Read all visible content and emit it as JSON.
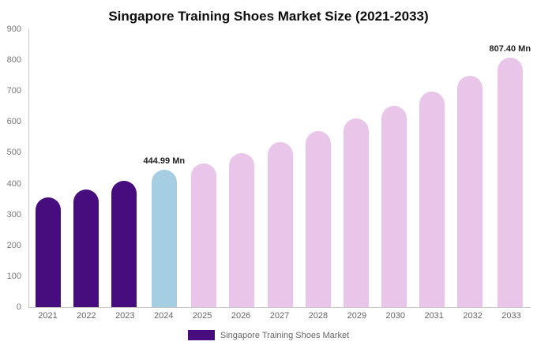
{
  "legend": {
    "label": "Singapore Training Shoes Market"
  },
  "chart_data": {
    "type": "bar",
    "title": "Singapore Training Shoes Market Size (2021-2033)",
    "categories": [
      "2021",
      "2022",
      "2023",
      "2024",
      "2025",
      "2026",
      "2027",
      "2028",
      "2029",
      "2030",
      "2031",
      "2032",
      "2033"
    ],
    "values": [
      355,
      380,
      410,
      444.99,
      466,
      498,
      534,
      570,
      610,
      653,
      699,
      748,
      807.4
    ],
    "data_labels": {
      "2024": "444.99 Mn",
      "2033": "807.40 Mn"
    },
    "bar_color_keys": [
      "purple",
      "purple",
      "purple",
      "blue",
      "pink",
      "pink",
      "pink",
      "pink",
      "pink",
      "pink",
      "pink",
      "pink",
      "pink"
    ],
    "colors": {
      "purple": "#470d7e",
      "blue": "#a6cee3",
      "pink": "#e9c6e9",
      "axis": "#c9c9c9",
      "tick_text": "#777777"
    },
    "xlabel": "",
    "ylabel": "",
    "ylim": [
      0,
      900
    ],
    "y_ticks": [
      0,
      100,
      200,
      300,
      400,
      500,
      600,
      700,
      800,
      900
    ],
    "grid": false,
    "legend_position": "bottom"
  }
}
